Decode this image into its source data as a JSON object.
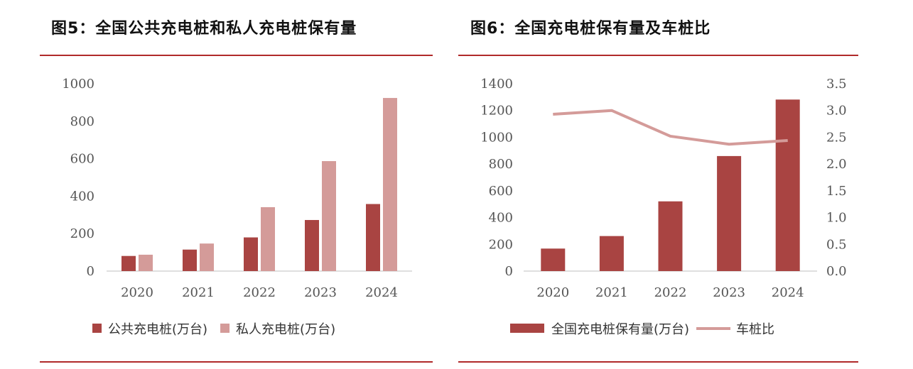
{
  "colors": {
    "accent": "#b02a2a",
    "public": "#a94442",
    "private": "#d49b99",
    "ratio_line": "#d49b99"
  },
  "figures": [
    {
      "title": "图5：全国公共充电桩和私人充电桩保有量",
      "chart_data": {
        "type": "bar",
        "categories": [
          "2020",
          "2021",
          "2022",
          "2023",
          "2024"
        ],
        "series": [
          {
            "name": "公共充电桩(万台)",
            "values": [
              80.7,
              114.7,
              179.7,
              272.6,
              357.9
            ]
          },
          {
            "name": "私人充电桩(万台)",
            "values": [
              87.4,
              147.0,
              341.2,
              587.0,
              924.0
            ]
          }
        ],
        "ylim": [
          0,
          1000
        ],
        "yticks": [
          "0",
          "200",
          "400",
          "600",
          "800",
          "1000"
        ],
        "legend_position": "bottom",
        "grid": false
      }
    },
    {
      "title": "图6：全国充电桩保有量及车桩比",
      "chart_data": {
        "type": "bar",
        "categories": [
          "2020",
          "2021",
          "2022",
          "2023",
          "2024"
        ],
        "series": [
          {
            "name": "全国充电桩保有量(万台)",
            "type": "bar",
            "axis": "left",
            "values": [
              168.1,
              261.7,
              521.0,
              859.6,
              1281.8
            ]
          },
          {
            "name": "车桩比",
            "type": "line",
            "axis": "right",
            "values": [
              2.93,
              3.0,
              2.52,
              2.37,
              2.44
            ]
          }
        ],
        "ylim": [
          0,
          1400
        ],
        "yticks": [
          "0",
          "200",
          "400",
          "600",
          "800",
          "1000",
          "1200",
          "1400"
        ],
        "y2lim": [
          0,
          3.5
        ],
        "y2ticks": [
          "0.0",
          "0.5",
          "1.0",
          "1.5",
          "2.0",
          "2.5",
          "3.0",
          "3.5"
        ],
        "legend_position": "bottom",
        "grid": false
      }
    }
  ]
}
